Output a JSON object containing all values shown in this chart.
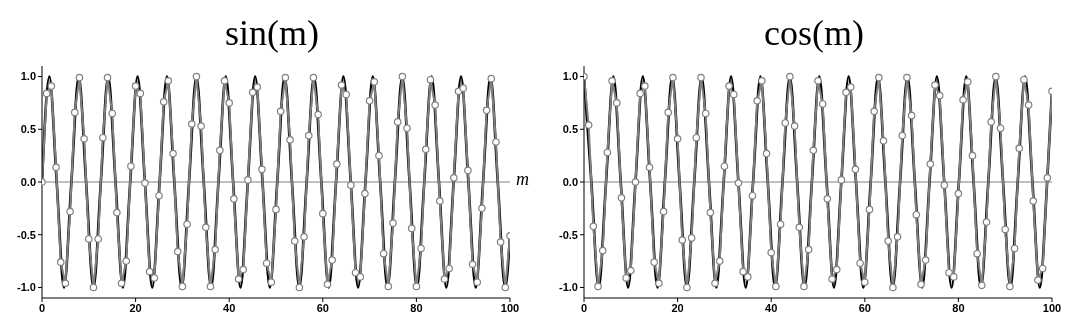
{
  "chart_data": [
    {
      "type": "line",
      "title": "sin(m)",
      "xlabel": "m",
      "xlim": [
        0,
        100
      ],
      "xticks": [
        0,
        20,
        40,
        60,
        80,
        100
      ],
      "ylim": [
        -1.1,
        1.1
      ],
      "yticks": [
        {
          "value": -1,
          "label": "-1.0"
        },
        {
          "value": -0.5,
          "label": "-0.5"
        },
        {
          "value": 0,
          "label": "0.0"
        },
        {
          "value": 0.5,
          "label": "0.5"
        },
        {
          "value": 1,
          "label": "1.0"
        }
      ],
      "ref_lines": [
        {
          "axis": "y",
          "value": 0,
          "color": "#808080"
        }
      ],
      "series": [
        {
          "color": "#000000",
          "marker": "none",
          "x": [
            0,
            1.57,
            3.14,
            4.71,
            6.28,
            7.85,
            9.42,
            11.0,
            12.57,
            14.14,
            15.71,
            17.28,
            18.85,
            20.42,
            21.99,
            23.56,
            25.13,
            26.7,
            28.27,
            29.85,
            31.42,
            32.99,
            34.56,
            36.13,
            37.7,
            39.27,
            40.84,
            42.41,
            43.98,
            45.55,
            47.12,
            48.69,
            50.27,
            51.84,
            53.41,
            54.98,
            56.55,
            58.12,
            59.69,
            61.26,
            62.83,
            64.4,
            65.97,
            67.54,
            69.12,
            70.69,
            72.26,
            73.83,
            75.4,
            76.97,
            78.54,
            80.11,
            81.68,
            83.25,
            84.82,
            86.39,
            87.96,
            89.54,
            91.11,
            92.68,
            94.25,
            95.82,
            97.39,
            98.96,
            100
          ],
          "values": [
            0,
            1,
            0,
            -1,
            0,
            1,
            0,
            -1,
            0,
            1,
            0,
            -1,
            0,
            1,
            0,
            -1,
            0,
            1,
            0,
            -1,
            0,
            1,
            0,
            -1,
            0,
            1,
            0,
            -1,
            0,
            1,
            0,
            -1,
            0,
            1,
            0,
            -1,
            0,
            1,
            0,
            -1,
            0,
            1,
            0,
            -1,
            0,
            1,
            0,
            -1,
            0,
            1,
            0,
            -1,
            0,
            1,
            0,
            -1,
            0,
            1,
            0,
            -1,
            0,
            1,
            0,
            -1,
            -0.51
          ]
        },
        {
          "color": "#808080",
          "marker": "circle",
          "x": [
            0,
            1,
            2,
            3,
            4,
            5,
            6,
            7,
            8,
            9,
            10,
            11,
            12,
            13,
            14,
            15,
            16,
            17,
            18,
            19,
            20,
            21,
            22,
            23,
            24,
            25,
            26,
            27,
            28,
            29,
            30,
            31,
            32,
            33,
            34,
            35,
            36,
            37,
            38,
            39,
            40,
            41,
            42,
            43,
            44,
            45,
            46,
            47,
            48,
            49,
            50,
            51,
            52,
            53,
            54,
            55,
            56,
            57,
            58,
            59,
            60,
            61,
            62,
            63,
            64,
            65,
            66,
            67,
            68,
            69,
            70,
            71,
            72,
            73,
            74,
            75,
            76,
            77,
            78,
            79,
            80,
            81,
            82,
            83,
            84,
            85,
            86,
            87,
            88,
            89,
            90,
            91,
            92,
            93,
            94,
            95,
            96,
            97,
            98,
            99,
            100
          ],
          "values": [
            0,
            0.84,
            0.91,
            0.14,
            -0.76,
            -0.96,
            -0.28,
            0.66,
            0.99,
            0.41,
            -0.54,
            -1.0,
            -0.54,
            0.42,
            0.99,
            0.65,
            -0.29,
            -0.96,
            -0.75,
            0.15,
            0.91,
            0.84,
            -0.01,
            -0.85,
            -0.91,
            -0.13,
            0.76,
            0.96,
            0.27,
            -0.66,
            -0.99,
            -0.4,
            0.55,
            1.0,
            0.53,
            -0.43,
            -0.99,
            -0.64,
            0.3,
            0.96,
            0.75,
            -0.16,
            -0.92,
            -0.83,
            0.02,
            0.85,
            0.9,
            0.12,
            -0.77,
            -0.95,
            -0.26,
            0.67,
            0.99,
            0.4,
            -0.56,
            -1.0,
            -0.52,
            0.44,
            0.99,
            0.64,
            -0.3,
            -0.97,
            -0.74,
            0.17,
            0.92,
            0.83,
            -0.03,
            -0.86,
            -0.9,
            -0.11,
            0.77,
            0.95,
            0.25,
            -0.68,
            -0.99,
            -0.39,
            0.57,
            1.0,
            0.51,
            -0.44,
            -0.99,
            -0.63,
            0.31,
            0.97,
            0.73,
            -0.18,
            -0.92,
            -0.82,
            0.04,
            0.86,
            0.89,
            0.11,
            -0.78,
            -0.95,
            -0.25,
            0.68,
            0.98,
            0.38,
            -0.57,
            -1.0,
            -0.51
          ]
        }
      ]
    },
    {
      "type": "line",
      "title": "cos(m)",
      "xlim": [
        0,
        100
      ],
      "xticks": [
        0,
        20,
        40,
        60,
        80,
        100
      ],
      "ylim": [
        -1.1,
        1.1
      ],
      "yticks": [
        {
          "value": -1,
          "label": "-1.0"
        },
        {
          "value": -0.5,
          "label": "-0.5"
        },
        {
          "value": 0,
          "label": "0.0"
        },
        {
          "value": 0.5,
          "label": "0.5"
        },
        {
          "value": 1,
          "label": "1.0"
        }
      ],
      "ref_lines": [
        {
          "axis": "y",
          "value": 0,
          "color": "#808080"
        }
      ],
      "series": [
        {
          "color": "#000000",
          "marker": "none",
          "x": [
            0,
            1.57,
            3.14,
            4.71,
            6.28,
            7.85,
            9.42,
            11.0,
            12.57,
            14.14,
            15.71,
            17.28,
            18.85,
            20.42,
            21.99,
            23.56,
            25.13,
            26.7,
            28.27,
            29.85,
            31.42,
            32.99,
            34.56,
            36.13,
            37.7,
            39.27,
            40.84,
            42.41,
            43.98,
            45.55,
            47.12,
            48.69,
            50.27,
            51.84,
            53.41,
            54.98,
            56.55,
            58.12,
            59.69,
            61.26,
            62.83,
            64.4,
            65.97,
            67.54,
            69.12,
            70.69,
            72.26,
            73.83,
            75.4,
            76.97,
            78.54,
            80.11,
            81.68,
            83.25,
            84.82,
            86.39,
            87.96,
            89.54,
            91.11,
            92.68,
            94.25,
            95.82,
            97.39,
            98.96,
            100
          ],
          "values": [
            1,
            0,
            -1,
            0,
            1,
            0,
            -1,
            0,
            1,
            0,
            -1,
            0,
            1,
            0,
            -1,
            0,
            1,
            0,
            -1,
            0,
            1,
            0,
            -1,
            0,
            1,
            0,
            -1,
            0,
            1,
            0,
            -1,
            0,
            1,
            0,
            -1,
            0,
            1,
            0,
            -1,
            0,
            1,
            0,
            -1,
            0,
            1,
            0,
            -1,
            0,
            1,
            0,
            -1,
            0,
            1,
            0,
            -1,
            0,
            1,
            0,
            -1,
            0,
            1,
            0,
            -1,
            0,
            0.86
          ]
        },
        {
          "color": "#808080",
          "marker": "circle",
          "x": [
            0,
            1,
            2,
            3,
            4,
            5,
            6,
            7,
            8,
            9,
            10,
            11,
            12,
            13,
            14,
            15,
            16,
            17,
            18,
            19,
            20,
            21,
            22,
            23,
            24,
            25,
            26,
            27,
            28,
            29,
            30,
            31,
            32,
            33,
            34,
            35,
            36,
            37,
            38,
            39,
            40,
            41,
            42,
            43,
            44,
            45,
            46,
            47,
            48,
            49,
            50,
            51,
            52,
            53,
            54,
            55,
            56,
            57,
            58,
            59,
            60,
            61,
            62,
            63,
            64,
            65,
            66,
            67,
            68,
            69,
            70,
            71,
            72,
            73,
            74,
            75,
            76,
            77,
            78,
            79,
            80,
            81,
            82,
            83,
            84,
            85,
            86,
            87,
            88,
            89,
            90,
            91,
            92,
            93,
            94,
            95,
            96,
            97,
            98,
            99,
            100
          ],
          "values": [
            1,
            0.54,
            -0.42,
            -0.99,
            -0.65,
            0.28,
            0.96,
            0.75,
            -0.15,
            -0.91,
            -0.84,
            0.0,
            0.84,
            0.91,
            0.14,
            -0.76,
            -0.96,
            -0.28,
            0.66,
            0.99,
            0.41,
            -0.55,
            -1.0,
            -0.53,
            0.42,
            0.99,
            0.65,
            -0.29,
            -0.96,
            -0.75,
            0.15,
            0.91,
            0.83,
            -0.01,
            -0.85,
            -0.9,
            -0.13,
            0.77,
            0.96,
            0.27,
            -0.67,
            -0.99,
            -0.4,
            0.56,
            1.0,
            0.53,
            -0.43,
            -0.99,
            -0.64,
            0.3,
            0.96,
            0.74,
            -0.16,
            -0.92,
            -0.83,
            0.02,
            0.85,
            0.9,
            0.12,
            -0.77,
            -0.95,
            -0.26,
            0.67,
            0.99,
            0.39,
            -0.56,
            -1.0,
            -0.52,
            0.44,
            0.99,
            0.63,
            -0.31,
            -0.97,
            -0.74,
            0.17,
            0.92,
            0.82,
            -0.03,
            -0.86,
            -0.9,
            -0.11,
            0.78,
            0.95,
            0.25,
            -0.68,
            -0.98,
            -0.38,
            0.57,
            1.0,
            0.51,
            -0.45,
            -0.99,
            -0.63,
            0.32,
            0.97,
            0.73,
            -0.18,
            -0.93,
            -0.82,
            0.04,
            0.86
          ]
        }
      ]
    }
  ]
}
